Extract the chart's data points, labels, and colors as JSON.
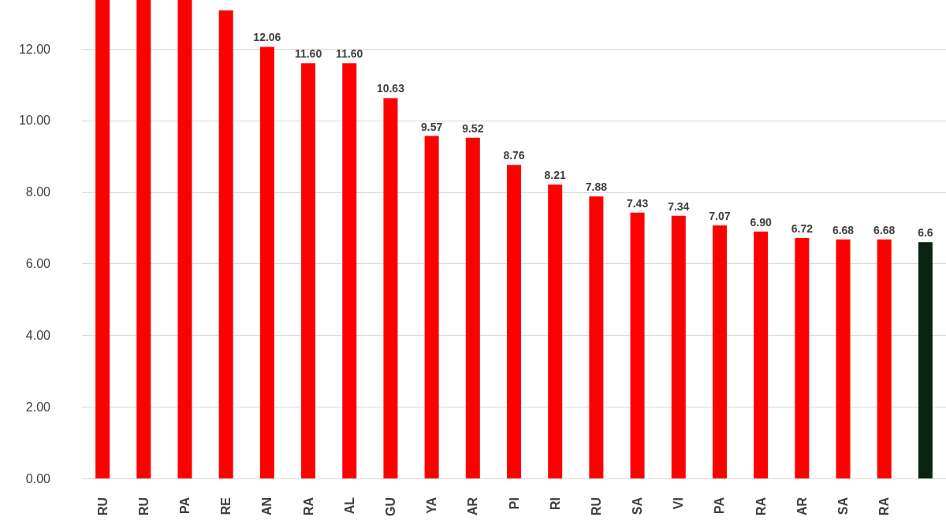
{
  "chart_data": {
    "type": "bar",
    "categories": [
      "RU",
      "RU",
      "PA",
      "RE",
      "AN",
      "RA",
      "AL",
      "GU",
      "YA",
      "AR",
      "PI",
      "RI",
      "RU",
      "SA",
      "VI",
      "PA",
      "RA",
      "AR",
      "SA",
      "RA",
      null
    ],
    "values": [
      13.37,
      13.37,
      13.37,
      13.08,
      12.06,
      11.6,
      11.6,
      10.63,
      9.57,
      9.52,
      8.76,
      8.21,
      7.88,
      7.43,
      7.34,
      7.07,
      6.9,
      6.72,
      6.68,
      6.68,
      6.6
    ],
    "value_labels": [
      null,
      null,
      null,
      null,
      "12.06",
      "11.60",
      "11.60",
      "10.63",
      "9.57",
      "9.52",
      "8.76",
      "8.21",
      "7.88",
      "7.43",
      "7.34",
      "7.07",
      "6.90",
      "6.72",
      "6.68",
      "6.68",
      "6.6"
    ],
    "colors": [
      "#ff0000",
      "#ff0000",
      "#ff0000",
      "#ff0000",
      "#ff0000",
      "#ff0000",
      "#ff0000",
      "#ff0000",
      "#ff0000",
      "#ff0000",
      "#ff0000",
      "#ff0000",
      "#ff0000",
      "#ff0000",
      "#ff0000",
      "#ff0000",
      "#ff0000",
      "#ff0000",
      "#ff0000",
      "#ff0000",
      "#0b2412"
    ],
    "ylim": [
      0,
      13.37
    ],
    "yticks": [
      {
        "value": 0,
        "label": "0.00"
      },
      {
        "value": 2,
        "label": "2.00"
      },
      {
        "value": 4,
        "label": "4.00"
      },
      {
        "value": 6,
        "label": "6.00"
      },
      {
        "value": 8,
        "label": "8.00"
      },
      {
        "value": 10,
        "label": "10.00"
      },
      {
        "value": 12,
        "label": "12.00"
      }
    ],
    "grid": "y"
  }
}
